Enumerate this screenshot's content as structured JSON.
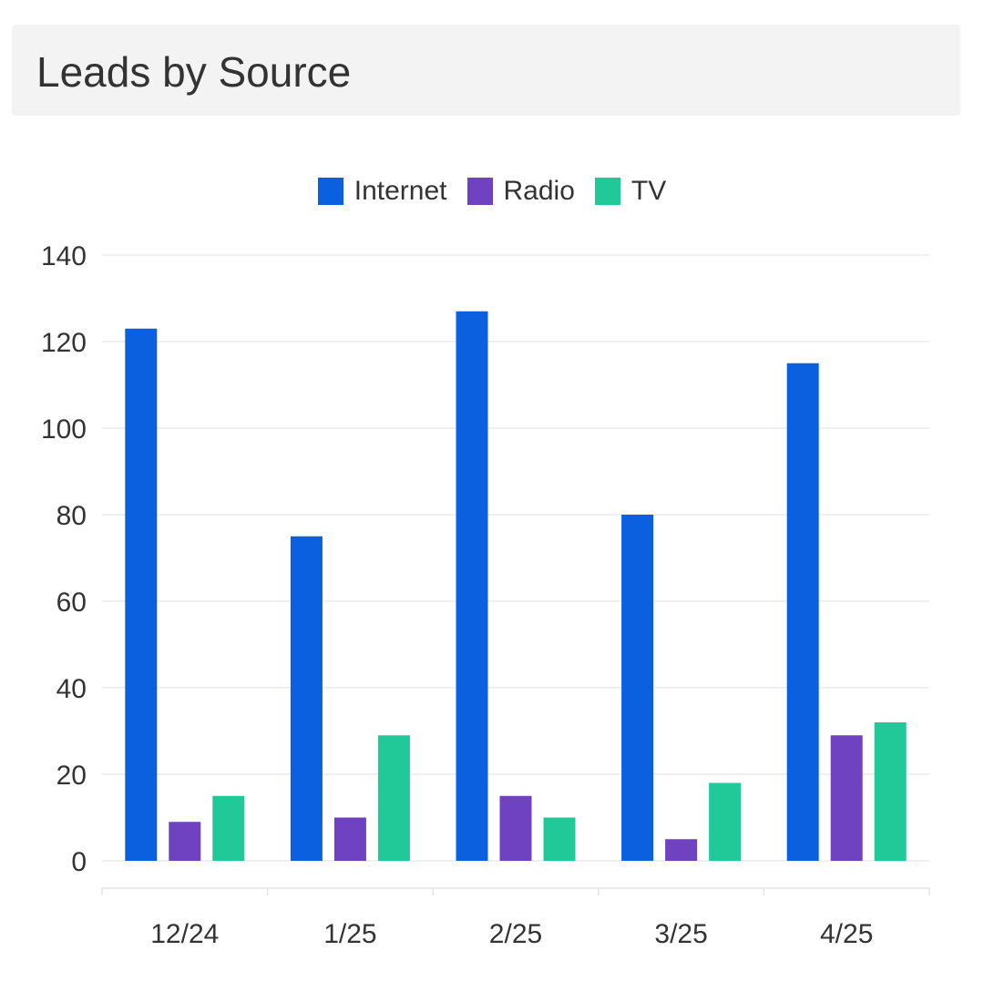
{
  "header": {
    "title": "Leads by Source"
  },
  "chart_data": {
    "type": "bar",
    "title": "Leads by Source",
    "categories": [
      "12/24",
      "1/25",
      "2/25",
      "3/25",
      "4/25"
    ],
    "series": [
      {
        "name": "Internet",
        "color": "#0b60e0",
        "values": [
          123,
          75,
          127,
          80,
          115
        ]
      },
      {
        "name": "Radio",
        "color": "#6f42c1",
        "values": [
          9,
          10,
          15,
          5,
          29
        ]
      },
      {
        "name": "TV",
        "color": "#20c997",
        "values": [
          15,
          29,
          10,
          18,
          32
        ]
      }
    ],
    "ylim": [
      0,
      140
    ],
    "yticks": [
      "0",
      "20",
      "40",
      "60",
      "80",
      "100",
      "120",
      "140"
    ],
    "xlabel": "",
    "ylabel": "",
    "grid": true,
    "legend": "top-center"
  }
}
